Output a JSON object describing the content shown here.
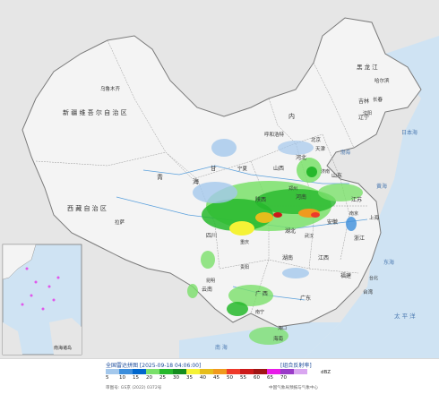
{
  "map": {
    "colors": {
      "sea": "#cfe3f3",
      "land": "#f4f4f4",
      "border": "#7a7a7a",
      "river": "#5aa0dc",
      "outside": "#e6e6e6"
    },
    "labels": {
      "xinjiang": "新 疆 维 吾 尔 自 治 区",
      "urumqi": "乌鲁木齐",
      "tibet": "西 藏 自 治 区",
      "lhasa": "拉萨",
      "qinghai": "青",
      "qinghai2": "海",
      "gansu": "甘",
      "neimenggu": "内",
      "huhehaote": "呼和浩特",
      "heilongjiang": "黑 龙 江",
      "harbin": "哈尔滨",
      "jilin": "吉林",
      "changchun": "长春",
      "liaoning": "辽宁",
      "shenyang": "沈阳",
      "beijing": "北京",
      "tianjin": "天津",
      "hebei": "河北",
      "shandong": "山东",
      "jinan": "济南",
      "shanxi": "山西",
      "henan": "河南",
      "zhengzhou": "郑州",
      "jiangsu": "江苏",
      "nanjing": "南京",
      "shanghai": "上海",
      "anhui": "安徽",
      "hubei": "湖北",
      "wuhan": "武汉",
      "hunan": "湖南",
      "zhejiang": "浙江",
      "jiangxi": "江西",
      "fujian": "福建",
      "taiwan": "台湾",
      "taibei": "台北",
      "guangdong": "广东",
      "guangxi": "广 西",
      "nanning": "南宁",
      "guiyang": "贵阳",
      "yunnan": "云南",
      "kunming": "昆明",
      "sichuan": "四川",
      "chongqing": "重庆",
      "shaanxi": "陕西",
      "ningxia": "宁夏",
      "hainan": "海南",
      "haikou": "海口",
      "riben": "日本海",
      "huanghai": "黄海",
      "donghai": "东海",
      "taipingyang": "太 平 洋",
      "nanhai": "南 海",
      "huanghai2": "渤海"
    },
    "inset_label": "南海诸岛"
  },
  "legend": {
    "title": "全国雷达拼图 [2025-09-18 04:06:00]",
    "product": "[组合反射率]",
    "unit": "dBZ",
    "note_left": "审图号: GS京 (2022) 0372号",
    "note_right": "中国气象局预报与气象中心",
    "swatches": [
      {
        "value": "5",
        "color": "#a4c8ec"
      },
      {
        "value": "10",
        "color": "#3c8edc"
      },
      {
        "value": "15",
        "color": "#0066cc"
      },
      {
        "value": "20",
        "color": "#7ae06a"
      },
      {
        "value": "25",
        "color": "#26b82c"
      },
      {
        "value": "30",
        "color": "#148c1e"
      },
      {
        "value": "35",
        "color": "#f5f236"
      },
      {
        "value": "40",
        "color": "#e6bd1c"
      },
      {
        "value": "45",
        "color": "#f09a1e"
      },
      {
        "value": "50",
        "color": "#ee3a2a"
      },
      {
        "value": "55",
        "color": "#cc1a1a"
      },
      {
        "value": "60",
        "color": "#a01414"
      },
      {
        "value": "65",
        "color": "#e81ce8"
      },
      {
        "value": "70",
        "color": "#9a3bc8"
      },
      {
        "value": "",
        "color": "#d9a6f0"
      }
    ]
  }
}
